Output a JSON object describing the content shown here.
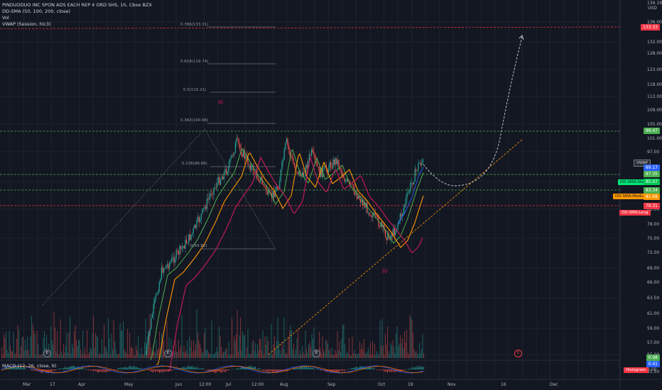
{
  "legend": {
    "symbol": "PINDUODUO INC SPON ADS EACH REP 4 ORD SHS, 1h, Cboe BZX",
    "indicator1": "DD-SMA (50, 100, 200, close)",
    "indicator2": "Vol",
    "indicator3": "VWAP (Session, hlc3)",
    "macd": "MACD (12, 26, close, 9)"
  },
  "currency": "USD",
  "price_axis": [
    "139.19",
    "136.00",
    "132.00",
    "128.00",
    "123.00",
    "118.00",
    "113.00",
    "109.00",
    "105.00",
    "101.00",
    "97.00",
    "93.00",
    "89.00",
    "85.00",
    "81.00",
    "78.00",
    "75.00",
    "72.00",
    "69.00",
    "66.00",
    "63.50",
    "61.00",
    "59.00",
    "57.00",
    "55.00",
    "53.00",
    "51.50",
    "0.00"
  ],
  "time_axis": [
    "Mar",
    "17",
    "Apr",
    "May",
    "Jun",
    "12:00",
    "Jul",
    "12:00",
    "Aug",
    "Sep",
    "Oct",
    "19",
    "Nov",
    "16",
    "Dec"
  ],
  "price_tags": {
    "top": "133.33",
    "green_upper": "99.47",
    "vwap_label": "VWAP",
    "vwap": "89.17",
    "green_mid": "87.35",
    "sma_green_label": "DD-SMA:Short",
    "sma_green": "85.07",
    "green_low": "83.34",
    "sma_orange_label": "DD-SMA:Medium",
    "sma_orange": "81.68",
    "red": "79.31",
    "sma_red_label": "DD-SMA:Long",
    "macd_tag1": "0.98",
    "macd_tag2": "0.41",
    "macd_tag3": "Histogram"
  },
  "waves": {
    "w3": "III",
    "w4": "IV"
  },
  "fibs": [
    "0.786(133.31)",
    "0.618(119.74)",
    "0.5(110.21)",
    "0.382(100.68)",
    "0.236(88.88)",
    "0(69.82)"
  ],
  "events": [
    "E",
    "E",
    "E",
    "E"
  ],
  "colors": {
    "bg": "#131722",
    "up": "#26a69a",
    "down": "#ef5350",
    "sma_short": "#4caf50",
    "sma_mid": "#ff9800",
    "sma_long": "#c2185b",
    "vwap": "#2962ff",
    "green_line": "#4caf50",
    "red_line": "#f23645"
  }
}
